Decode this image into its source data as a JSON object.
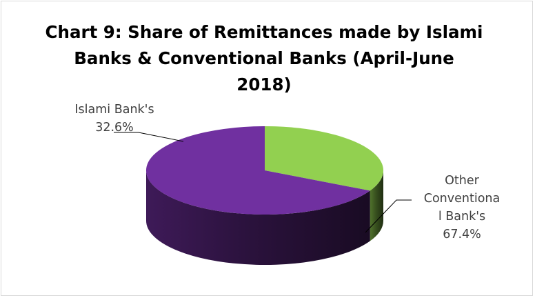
{
  "chart_data": {
    "type": "pie",
    "title": "Chart 9: Share of Remittances made by Islami Banks & Conventional Banks (April-June 2018)",
    "title_lines": [
      "Chart 9: Share of Remittances made by Islami",
      "Banks & Conventional Banks (April-June",
      "2018)"
    ],
    "slices": [
      {
        "label": "Islami Bank's",
        "value": 32.6,
        "value_label": "32.6%",
        "color": "#92d050",
        "label_lines": [
          "Islami Bank's",
          "32.6%"
        ]
      },
      {
        "label": "Other Conventional Bank's",
        "value": 67.4,
        "value_label": "67.4%",
        "color": "#7030a0",
        "label_lines": [
          "Other",
          "Conventiona",
          "l Bank's",
          "67.4%"
        ]
      }
    ],
    "legend": false,
    "three_d": true
  }
}
